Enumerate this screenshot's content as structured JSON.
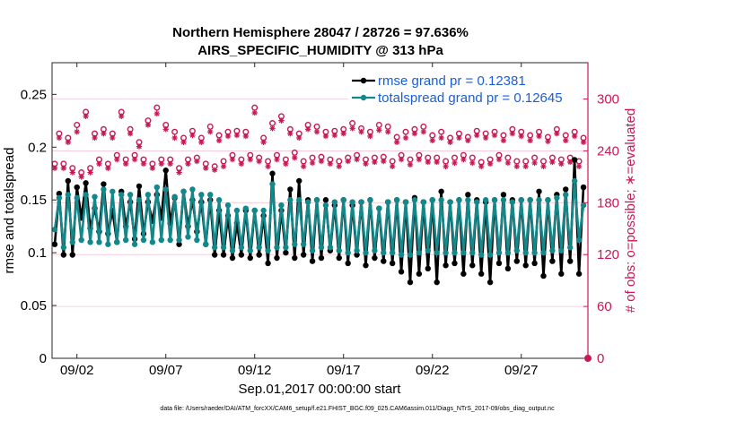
{
  "chart_data": {
    "type": "line",
    "title": "Northern Hemisphere 28047 / 28726 = 97.636%",
    "subtitle": "AIRS_SPECIFIC_HUMIDITY @ 313 hPa",
    "xlabel": "Sep.01,2017 00:00:00 start",
    "ylabel": "rmse and totalspread",
    "y2label": "# of obs: o=possible; ∗=evaluated",
    "footer": "data file: /Users/raeder/DAI/ATM_forcXX/CAM6_setup/f.e21.FHIST_BGC.f09_025.CAM6assim.011/Diags_NTrS_2017-09/obs_diag_output.nc",
    "xlim": [
      0.6,
      30.75
    ],
    "ylim": [
      0,
      0.28
    ],
    "y2lim": [
      0,
      342
    ],
    "x_ticks": [
      {
        "v": 2,
        "label": "09/02"
      },
      {
        "v": 7,
        "label": "09/07"
      },
      {
        "v": 12,
        "label": "09/12"
      },
      {
        "v": 17,
        "label": "09/17"
      },
      {
        "v": 22,
        "label": "09/22"
      },
      {
        "v": 27,
        "label": "09/27"
      }
    ],
    "y_ticks": [
      {
        "v": 0,
        "label": "0"
      },
      {
        "v": 0.05,
        "label": "0.05"
      },
      {
        "v": 0.1,
        "label": "0.1"
      },
      {
        "v": 0.15,
        "label": "0.15"
      },
      {
        "v": 0.2,
        "label": "0.2"
      },
      {
        "v": 0.25,
        "label": "0.25"
      }
    ],
    "y2_ticks": [
      {
        "v": 0,
        "label": "0"
      },
      {
        "v": 60,
        "label": "60"
      },
      {
        "v": 120,
        "label": "120"
      },
      {
        "v": 180,
        "label": "180"
      },
      {
        "v": 240,
        "label": "240"
      },
      {
        "v": 300,
        "label": "300"
      }
    ],
    "x": [
      0.75,
      1.0,
      1.25,
      1.5,
      1.75,
      2.0,
      2.25,
      2.5,
      2.75,
      3.0,
      3.25,
      3.5,
      3.75,
      4.0,
      4.25,
      4.5,
      4.75,
      5.0,
      5.25,
      5.5,
      5.75,
      6.0,
      6.25,
      6.5,
      6.75,
      7.0,
      7.25,
      7.5,
      7.75,
      8.0,
      8.25,
      8.5,
      8.75,
      9.0,
      9.25,
      9.5,
      9.75,
      10.0,
      10.25,
      10.5,
      10.75,
      11.0,
      11.25,
      11.5,
      11.75,
      12.0,
      12.25,
      12.5,
      12.75,
      13.0,
      13.25,
      13.5,
      13.75,
      14.0,
      14.25,
      14.5,
      14.75,
      15.0,
      15.25,
      15.5,
      15.75,
      16.0,
      16.25,
      16.5,
      16.75,
      17.0,
      17.25,
      17.5,
      17.75,
      18.0,
      18.25,
      18.5,
      18.75,
      19.0,
      19.25,
      19.5,
      19.75,
      20.0,
      20.25,
      20.5,
      20.75,
      21.0,
      21.25,
      21.5,
      21.75,
      22.0,
      22.25,
      22.5,
      22.75,
      23.0,
      23.25,
      23.5,
      23.75,
      24.0,
      24.25,
      24.5,
      24.75,
      25.0,
      25.25,
      25.5,
      25.75,
      26.0,
      26.25,
      26.5,
      26.75,
      27.0,
      27.25,
      27.5,
      27.75,
      28.0,
      28.25,
      28.5,
      28.75,
      29.0,
      29.25,
      29.5,
      29.75,
      30.0,
      30.25,
      30.5
    ],
    "series": [
      {
        "name": "rmse",
        "legend": "rmse grand pr = 0.12381",
        "color": "#000000",
        "values": [
          0.108,
          0.156,
          0.098,
          0.168,
          0.098,
          0.162,
          0.133,
          0.166,
          0.123,
          0.142,
          0.12,
          0.165,
          0.118,
          0.14,
          0.11,
          0.158,
          0.125,
          0.148,
          0.113,
          0.163,
          0.118,
          0.148,
          0.13,
          0.155,
          0.133,
          0.178,
          0.128,
          0.152,
          0.108,
          0.158,
          0.125,
          0.15,
          0.12,
          0.148,
          0.108,
          0.15,
          0.098,
          0.14,
          0.098,
          0.135,
          0.095,
          0.128,
          0.098,
          0.14,
          0.095,
          0.14,
          0.098,
          0.135,
          0.09,
          0.175,
          0.095,
          0.14,
          0.1,
          0.16,
          0.095,
          0.168,
          0.098,
          0.15,
          0.092,
          0.15,
          0.095,
          0.15,
          0.102,
          0.145,
          0.095,
          0.15,
          0.09,
          0.145,
          0.098,
          0.148,
          0.088,
          0.15,
          0.095,
          0.142,
          0.092,
          0.148,
          0.09,
          0.15,
          0.082,
          0.148,
          0.072,
          0.152,
          0.08,
          0.148,
          0.085,
          0.15,
          0.072,
          0.158,
          0.088,
          0.148,
          0.09,
          0.15,
          0.08,
          0.155,
          0.088,
          0.15,
          0.08,
          0.148,
          0.072,
          0.15,
          0.09,
          0.155,
          0.085,
          0.15,
          0.092,
          0.15,
          0.088,
          0.15,
          0.09,
          0.158,
          0.078,
          0.15,
          0.092,
          0.155,
          0.08,
          0.16,
          0.092,
          0.188,
          0.08,
          0.162
        ]
      },
      {
        "name": "totalspread",
        "legend": "totalspread grand pr = 0.12645",
        "color": "#12888a",
        "values": [
          0.122,
          0.152,
          0.105,
          0.155,
          0.11,
          0.152,
          0.112,
          0.155,
          0.11,
          0.153,
          0.11,
          0.16,
          0.108,
          0.158,
          0.11,
          0.155,
          0.112,
          0.155,
          0.108,
          0.15,
          0.112,
          0.155,
          0.11,
          0.162,
          0.112,
          0.16,
          0.112,
          0.153,
          0.112,
          0.158,
          0.115,
          0.16,
          0.112,
          0.155,
          0.108,
          0.155,
          0.105,
          0.15,
          0.105,
          0.145,
          0.102,
          0.14,
          0.105,
          0.142,
          0.102,
          0.14,
          0.105,
          0.14,
          0.102,
          0.165,
          0.105,
          0.145,
          0.105,
          0.15,
          0.108,
          0.15,
          0.108,
          0.148,
          0.102,
          0.15,
          0.105,
          0.145,
          0.105,
          0.148,
          0.102,
          0.15,
          0.1,
          0.148,
          0.102,
          0.148,
          0.1,
          0.15,
          0.102,
          0.142,
          0.1,
          0.148,
          0.1,
          0.15,
          0.098,
          0.148,
          0.098,
          0.15,
          0.1,
          0.148,
          0.102,
          0.15,
          0.1,
          0.15,
          0.1,
          0.148,
          0.1,
          0.15,
          0.1,
          0.15,
          0.1,
          0.148,
          0.098,
          0.15,
          0.098,
          0.15,
          0.1,
          0.15,
          0.1,
          0.148,
          0.102,
          0.15,
          0.1,
          0.15,
          0.1,
          0.15,
          0.1,
          0.15,
          0.102,
          0.152,
          0.102,
          0.155,
          0.105,
          0.168,
          0.112,
          0.145
        ]
      }
    ],
    "obs_possible": [
      225,
      260,
      225,
      255,
      220,
      270,
      215,
      285,
      220,
      260,
      230,
      265,
      225,
      260,
      235,
      285,
      230,
      265,
      235,
      250,
      230,
      275,
      225,
      290,
      230,
      270,
      230,
      262,
      220,
      255,
      230,
      263,
      232,
      255,
      225,
      268,
      222,
      258,
      228,
      262,
      235,
      263,
      230,
      262,
      235,
      290,
      232,
      255,
      228,
      272,
      235,
      280,
      230,
      265,
      238,
      260,
      228,
      270,
      232,
      268,
      233,
      262,
      230,
      263,
      228,
      265,
      232,
      272,
      235,
      266,
      230,
      262,
      232,
      270,
      233,
      268,
      228,
      256,
      235,
      262,
      230,
      265,
      235,
      268,
      232,
      258,
      232,
      262,
      228,
      255,
      232,
      260,
      235,
      256,
      232,
      263,
      227,
      260,
      230,
      262,
      235,
      258,
      232,
      265,
      228,
      262,
      228,
      258,
      232,
      262,
      228,
      256,
      232,
      265,
      230,
      258,
      232,
      262,
      228,
      255
    ],
    "obs_evaluated": [
      220,
      255,
      220,
      250,
      215,
      262,
      210,
      280,
      215,
      255,
      225,
      260,
      220,
      255,
      230,
      280,
      225,
      260,
      230,
      245,
      225,
      270,
      220,
      283,
      225,
      265,
      225,
      255,
      215,
      250,
      225,
      258,
      228,
      250,
      220,
      262,
      218,
      252,
      222,
      257,
      230,
      258,
      225,
      257,
      230,
      284,
      228,
      250,
      222,
      266,
      230,
      275,
      225,
      260,
      232,
      255,
      222,
      265,
      226,
      262,
      228,
      257,
      225,
      258,
      222,
      260,
      228,
      266,
      230,
      262,
      225,
      257,
      227,
      264,
      228,
      262,
      222,
      250,
      230,
      255,
      224,
      260,
      230,
      262,
      227,
      252,
      227,
      255,
      222,
      250,
      226,
      255,
      230,
      252,
      226,
      258,
      222,
      255,
      225,
      258,
      230,
      252,
      226,
      260,
      222,
      257,
      222,
      252,
      226,
      257,
      222,
      251,
      227,
      260,
      225,
      252,
      227,
      257,
      222,
      250
    ]
  }
}
